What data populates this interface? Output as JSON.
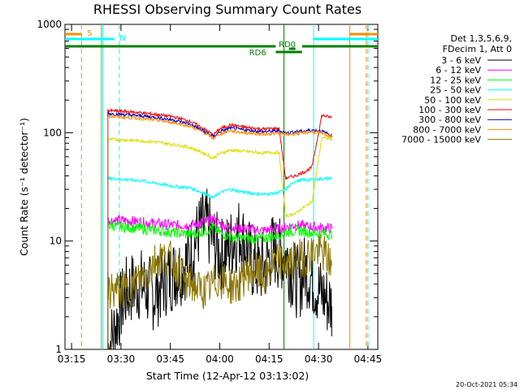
{
  "chart_data": {
    "type": "line",
    "title": "RHESSI Observing Summary Count Rates",
    "xlabel": "Start Time (12-Apr-12 03:13:02)",
    "ylabel": "Count Rate (s⁻¹ detector⁻¹)",
    "yscale": "log",
    "ylim": [
      1,
      1000
    ],
    "xlim_minutes": [
      0,
      95
    ],
    "x_unit": "minutes after 03:13:02",
    "x_ticks": [
      {
        "label": "03:15",
        "t": 2
      },
      {
        "label": "03:30",
        "t": 17
      },
      {
        "label": "03:45",
        "t": 32
      },
      {
        "label": "04:00",
        "t": 47
      },
      {
        "label": "04:15",
        "t": 62
      },
      {
        "label": "04:30",
        "t": 77
      },
      {
        "label": "04:45",
        "t": 92
      }
    ],
    "y_ticks": [
      {
        "label": "1",
        "v": 1
      },
      {
        "label": "10",
        "v": 10
      },
      {
        "label": "100",
        "v": 100
      },
      {
        "label": "1000",
        "v": 1000
      }
    ],
    "legend_header": [
      "Det 1,3,5,6,9,",
      "FDecim 1, Att 0"
    ],
    "series": [
      {
        "name": "3 - 6 keV",
        "color": "#000000",
        "t": [
          13,
          15,
          17,
          19,
          21,
          23,
          25,
          27,
          29,
          31,
          33,
          35,
          37,
          39,
          41,
          43,
          45,
          47,
          49,
          51,
          53,
          55,
          57,
          59,
          61,
          63,
          65,
          67,
          69,
          71,
          73,
          75,
          77,
          79,
          81
        ],
        "v": [
          1.0,
          1.5,
          2.5,
          3.5,
          3.8,
          4.0,
          3.5,
          3.2,
          3.8,
          4.5,
          5.0,
          5.5,
          6.5,
          9.0,
          13.0,
          14.0,
          10.0,
          7.5,
          8.0,
          10.0,
          12.0,
          9.0,
          6.0,
          5.5,
          6.0,
          8.5,
          7.5,
          7.5,
          5.0,
          4.0,
          5.5,
          4.5,
          3.5,
          3.0,
          2.5
        ]
      },
      {
        "name": "6 - 12 keV",
        "color": "#ff00ff",
        "t": [
          13,
          18,
          23,
          28,
          33,
          38,
          43,
          45,
          47,
          50,
          55,
          60,
          65,
          67,
          70,
          75,
          81
        ],
        "v": [
          15.5,
          15.5,
          15.0,
          14.5,
          14.0,
          14.0,
          15.0,
          16.0,
          14.5,
          13.5,
          13.0,
          12.5,
          13.0,
          13.5,
          14.0,
          13.5,
          13.0
        ]
      },
      {
        "name": "12 - 25 keV",
        "color": "#00ff00",
        "t": [
          13,
          18,
          23,
          28,
          33,
          38,
          43,
          45,
          47,
          50,
          55,
          60,
          65,
          67,
          70,
          75,
          81
        ],
        "v": [
          14.0,
          13.5,
          13.0,
          12.5,
          12.0,
          11.5,
          12.5,
          13.5,
          12.0,
          11.0,
          10.5,
          10.5,
          11.5,
          12.0,
          12.5,
          12.0,
          11.5
        ]
      },
      {
        "name": "25 - 50 keV",
        "color": "#00ffff",
        "t": [
          13,
          18,
          23,
          28,
          33,
          38,
          43,
          45,
          47,
          50,
          55,
          60,
          65,
          67,
          70,
          75,
          81
        ],
        "v": [
          38,
          37,
          36,
          34,
          32,
          31,
          27,
          25,
          28,
          30,
          28,
          27,
          28,
          30,
          36,
          37,
          38
        ]
      },
      {
        "name": "50 - 100 keV",
        "color": "#dddd00",
        "t": [
          13,
          18,
          23,
          28,
          33,
          38,
          43,
          45,
          47,
          50,
          55,
          60,
          65,
          67,
          70,
          73,
          75,
          78,
          81
        ],
        "v": [
          87,
          86,
          84,
          82,
          78,
          73,
          63,
          58,
          64,
          69,
          67,
          65,
          66,
          17,
          18,
          21,
          23,
          90,
          88
        ]
      },
      {
        "name": "100 - 300 keV",
        "color": "#ff0000",
        "t": [
          13,
          18,
          23,
          28,
          33,
          38,
          43,
          45,
          47,
          50,
          55,
          60,
          65,
          67,
          70,
          73,
          75,
          78,
          81
        ],
        "v": [
          160,
          157,
          153,
          147,
          140,
          128,
          105,
          95,
          108,
          118,
          112,
          108,
          110,
          38,
          40,
          44,
          48,
          145,
          138
        ]
      },
      {
        "name": "300 - 800 keV",
        "color": "#0000cc",
        "t": [
          13,
          18,
          23,
          28,
          33,
          38,
          43,
          45,
          47,
          50,
          55,
          60,
          65,
          67,
          70,
          73,
          75,
          78,
          81
        ],
        "v": [
          150,
          147,
          143,
          138,
          131,
          120,
          100,
          92,
          102,
          110,
          106,
          102,
          104,
          100,
          102,
          104,
          106,
          103,
          94
        ]
      },
      {
        "name": "800 - 7000 keV",
        "color": "#ff8c00",
        "t": [
          13,
          18,
          23,
          28,
          33,
          38,
          43,
          45,
          47,
          50,
          55,
          60,
          65,
          67,
          70,
          73,
          75,
          78,
          81
        ],
        "v": [
          142,
          139,
          135,
          130,
          124,
          115,
          97,
          88,
          97,
          104,
          100,
          97,
          99,
          96,
          98,
          100,
          102,
          99,
          92
        ]
      },
      {
        "name": "7000 - 15000 keV",
        "color": "#8b7500",
        "t": [
          13,
          15,
          17,
          19,
          21,
          23,
          25,
          27,
          29,
          31,
          33,
          35,
          37,
          39,
          41,
          43,
          45,
          47,
          49,
          51,
          53,
          55,
          57,
          59,
          61,
          63,
          65,
          67,
          69,
          71,
          73,
          75,
          77,
          79,
          81
        ],
        "v": [
          3.5,
          3.5,
          3.5,
          3.5,
          4.0,
          4.5,
          5.0,
          6.5,
          7.0,
          7.0,
          6.5,
          5.0,
          4.0,
          4.0,
          3.5,
          3.5,
          4.0,
          4.5,
          4.0,
          3.8,
          4.0,
          5.0,
          5.5,
          5.0,
          4.5,
          6.0,
          6.5,
          6.0,
          6.5,
          7.0,
          7.0,
          8.0,
          8.0,
          7.5,
          6.0
        ]
      }
    ],
    "flags": [
      {
        "label": "S",
        "color": "#ff8c00",
        "t_start": 0,
        "t_end": 5
      },
      {
        "label": "N",
        "color": "#00ffff",
        "t_start": 0,
        "t_end": 15
      },
      {
        "label": "RD0",
        "color": "#008000",
        "t_start": 68,
        "t_end": 70
      },
      {
        "label": "RD6",
        "color": "#008000",
        "t_start": 0,
        "t_end": 95
      }
    ],
    "vlines": [
      {
        "t": 5.0,
        "color": "#ff8c00",
        "style": "dashed"
      },
      {
        "t": 11.0,
        "color": "#ff8c00",
        "style": "solid"
      },
      {
        "t": 11.5,
        "color": "#00ffff",
        "style": "solid"
      },
      {
        "t": 16.5,
        "color": "#00ffff",
        "style": "dashed"
      },
      {
        "t": 66.5,
        "color": "#008000",
        "style": "solid"
      },
      {
        "t": 75.5,
        "color": "#00ffff",
        "style": "solid"
      },
      {
        "t": 86.5,
        "color": "#ff8c00",
        "style": "solid"
      },
      {
        "t": 92.0,
        "color": "#00ffff",
        "style": "dashed"
      },
      {
        "t": 91.5,
        "color": "#ff8c00",
        "style": "dashed"
      }
    ],
    "footer": "20-Oct-2021 05:34"
  }
}
